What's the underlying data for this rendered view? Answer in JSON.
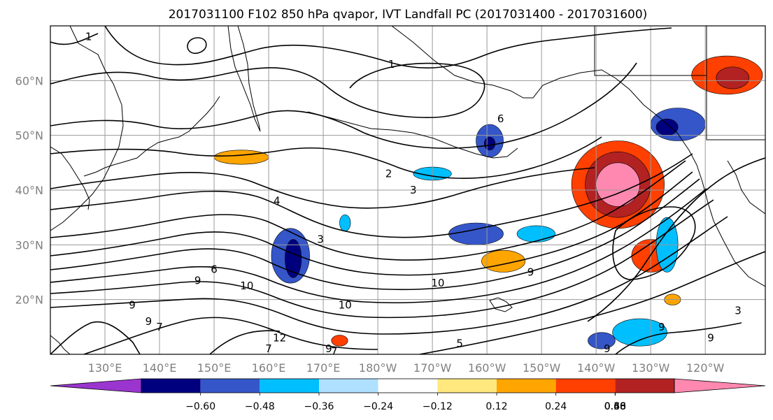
{
  "title": "2017031100 F102 850 hPa qvapor, IVT Landfall PC (2017031400 - 2017031600)",
  "lat_labels": [
    "60°N",
    "50°N",
    "40°N",
    "30°N",
    "20°N"
  ],
  "lon_labels": [
    "130°E",
    "140°E",
    "150°E",
    "160°E",
    "170°E",
    "180°W",
    "170°W",
    "160°W",
    "150°W",
    "140°W",
    "130°W",
    "120°W"
  ],
  "map_extent": {
    "lon_min": 120,
    "lon_max": 251,
    "lat_min": 10,
    "lat_max": 70
  },
  "lat_ticks": [
    60,
    50,
    40,
    30,
    20
  ],
  "lon_ticks": [
    130,
    140,
    150,
    160,
    170,
    180,
    190,
    200,
    210,
    220,
    230,
    240
  ],
  "colorbar": {
    "colors": [
      "#9a35cf",
      "#00007f",
      "#3556c9",
      "#00bfff",
      "#b0e0ff",
      "#ffffff",
      "#ffe97f",
      "#ffa500",
      "#ff4000",
      "#b22222",
      "#ff88b0"
    ],
    "tick_labels": [
      "−0.60",
      "−0.48",
      "−0.36",
      "−0.24",
      "−0.12",
      "0.12",
      "0.24",
      "0.36",
      "0.48",
      "0.60"
    ],
    "extend": "both"
  },
  "contour_labels": [
    {
      "text": "1",
      "lon": 127,
      "lat": 68
    },
    {
      "text": "1",
      "lon": 182.5,
      "lat": 63
    },
    {
      "text": "2",
      "lon": 182,
      "lat": 43
    },
    {
      "text": "3",
      "lon": 186.5,
      "lat": 40
    },
    {
      "text": "4",
      "lon": 161.5,
      "lat": 38
    },
    {
      "text": "3",
      "lon": 169.5,
      "lat": 31
    },
    {
      "text": "6",
      "lon": 150,
      "lat": 25.5
    },
    {
      "text": "9",
      "lon": 147,
      "lat": 23.5
    },
    {
      "text": "10",
      "lon": 156,
      "lat": 22.5
    },
    {
      "text": "9",
      "lon": 135,
      "lat": 19
    },
    {
      "text": "10",
      "lon": 191,
      "lat": 23
    },
    {
      "text": "10",
      "lon": 174,
      "lat": 19
    },
    {
      "text": "9",
      "lon": 208,
      "lat": 25
    },
    {
      "text": "9",
      "lon": 138,
      "lat": 16
    },
    {
      "text": "7",
      "lon": 140,
      "lat": 15
    },
    {
      "text": "12",
      "lon": 162,
      "lat": 13
    },
    {
      "text": "7",
      "lon": 160,
      "lat": 11
    },
    {
      "text": "9",
      "lon": 171,
      "lat": 11
    },
    {
      "text": "7",
      "lon": 172,
      "lat": 10.5
    },
    {
      "text": "5",
      "lon": 195,
      "lat": 12
    },
    {
      "text": "9",
      "lon": 222,
      "lat": 11
    },
    {
      "text": "9",
      "lon": 232,
      "lat": 15
    },
    {
      "text": "9",
      "lon": 241,
      "lat": 13
    },
    {
      "text": "6",
      "lon": 202.5,
      "lat": 53
    },
    {
      "text": "3",
      "lon": 246,
      "lat": 18
    }
  ],
  "anomaly_blobs": [
    {
      "level": "0.36",
      "lon": 224,
      "lat": 41,
      "rx": 8.5,
      "ry": 8
    },
    {
      "level": "0.48",
      "lon": 224,
      "lat": 41,
      "rx": 6,
      "ry": 6
    },
    {
      "level": "0.60",
      "lon": 224,
      "lat": 41,
      "rx": 4,
      "ry": 4
    },
    {
      "level": "0.36",
      "lon": 244,
      "lat": 61,
      "rx": 6.5,
      "ry": 3.5
    },
    {
      "level": "0.48",
      "lon": 245,
      "lat": 60.5,
      "rx": 3,
      "ry": 2
    },
    {
      "level": "0.36",
      "lon": 230,
      "lat": 28,
      "rx": 3.5,
      "ry": 3
    },
    {
      "level": "0.24",
      "lon": 203,
      "lat": 27,
      "rx": 4,
      "ry": 2
    },
    {
      "level": "0.24",
      "lon": 155,
      "lat": 46,
      "rx": 5,
      "ry": 1.3
    },
    {
      "level": "0.36",
      "lon": 173,
      "lat": 12.5,
      "rx": 1.5,
      "ry": 1
    },
    {
      "level": "0.24",
      "lon": 234,
      "lat": 20,
      "rx": 1.5,
      "ry": 1
    },
    {
      "level": "-0.36",
      "lon": 164,
      "lat": 28,
      "rx": 3.5,
      "ry": 5
    },
    {
      "level": "-0.48",
      "lon": 164.5,
      "lat": 27.5,
      "rx": 1.5,
      "ry": 3.5
    },
    {
      "level": "-0.36",
      "lon": 200.5,
      "lat": 49,
      "rx": 2.5,
      "ry": 3
    },
    {
      "level": "-0.48",
      "lon": 200.5,
      "lat": 48.5,
      "rx": 1,
      "ry": 1.2
    },
    {
      "level": "-0.36",
      "lon": 235,
      "lat": 52,
      "rx": 5,
      "ry": 3
    },
    {
      "level": "-0.48",
      "lon": 233,
      "lat": 51.5,
      "rx": 2,
      "ry": 1.5
    },
    {
      "level": "-0.36",
      "lon": 198,
      "lat": 32,
      "rx": 5,
      "ry": 2
    },
    {
      "level": "-0.24",
      "lon": 209,
      "lat": 32,
      "rx": 3.5,
      "ry": 1.5
    },
    {
      "level": "-0.24",
      "lon": 190,
      "lat": 43,
      "rx": 3.5,
      "ry": 1.2
    },
    {
      "level": "-0.24",
      "lon": 228,
      "lat": 14,
      "rx": 5,
      "ry": 2.5
    },
    {
      "level": "-0.36",
      "lon": 221,
      "lat": 12.5,
      "rx": 2.5,
      "ry": 1.5
    },
    {
      "level": "-0.24",
      "lon": 233,
      "lat": 30,
      "rx": 2,
      "ry": 5
    },
    {
      "level": "-0.24",
      "lon": 174,
      "lat": 34,
      "rx": 1,
      "ry": 1.5
    }
  ]
}
